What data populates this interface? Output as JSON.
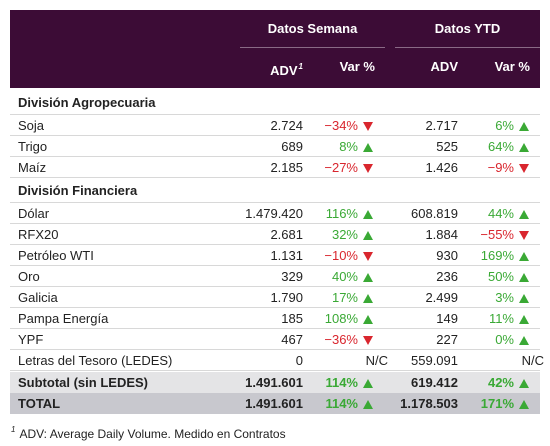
{
  "header": {
    "groups": [
      "Datos Semana",
      "Datos YTD"
    ],
    "columns": [
      {
        "label": "ADV",
        "note": "1"
      },
      {
        "label": "Var %"
      },
      {
        "label": "ADV"
      },
      {
        "label": "Var %"
      }
    ]
  },
  "sections": [
    {
      "title": "División Agropecuaria",
      "rows": [
        [
          "Soja",
          "2.724",
          "−34%",
          "2.717",
          "6%"
        ],
        [
          "Trigo",
          "689",
          "8%",
          "525",
          "64%"
        ],
        [
          "Maíz",
          "2.185",
          "−27%",
          "1.426",
          "−9%"
        ]
      ]
    },
    {
      "title": "División Financiera",
      "rows": [
        [
          "Dólar",
          "1.479.420",
          "116%",
          "608.819",
          "44%"
        ],
        [
          "RFX20",
          "2.681",
          "32%",
          "1.884",
          "−55%"
        ],
        [
          "Petróleo WTI",
          "1.131",
          "−10%",
          "930",
          "169%"
        ],
        [
          "Oro",
          "329",
          "40%",
          "236",
          "50%"
        ],
        [
          "Galicia",
          "1.790",
          "17%",
          "2.499",
          "3%"
        ],
        [
          "Pampa Energía",
          "185",
          "108%",
          "149",
          "11%"
        ],
        [
          "YPF",
          "467",
          "−36%",
          "227",
          "0%"
        ],
        [
          "Letras del Tesoro (LEDES)",
          "0",
          "N/C",
          "559.091",
          "N/C"
        ]
      ]
    }
  ],
  "totals": [
    [
      "Subtotal (sin LEDES)",
      "1.491.601",
      "114%",
      "619.412",
      "42%"
    ],
    [
      "TOTAL",
      "1.491.601",
      "114%",
      "1.178.503",
      "171%"
    ]
  ],
  "footnote": {
    "marker": "1",
    "text": "ADV: Average Daily Volume. Medido en Contratos"
  }
}
